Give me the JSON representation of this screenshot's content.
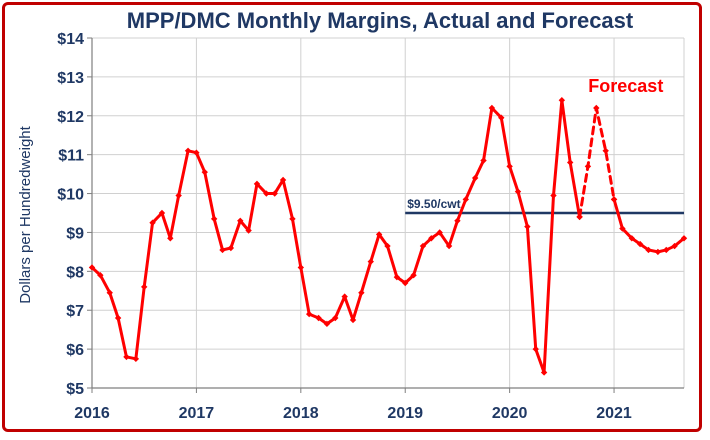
{
  "chart_data": {
    "type": "line",
    "title": "MPP/DMC Monthly Margins, Actual and Forecast",
    "ylabel": "Dollars per Hundredweight",
    "ylim": [
      5,
      14
    ],
    "yticks": [
      5,
      6,
      7,
      8,
      9,
      10,
      11,
      12,
      13,
      14
    ],
    "ytick_labels": [
      "$5",
      "$6",
      "$7",
      "$8",
      "$9",
      "$10",
      "$11",
      "$12",
      "$13",
      "$14"
    ],
    "xlim": [
      2016,
      2021.67
    ],
    "xticks": [
      2016,
      2017,
      2018,
      2019,
      2020,
      2021
    ],
    "xtick_labels": [
      "2016",
      "2017",
      "2018",
      "2019",
      "2020",
      "2021"
    ],
    "grid": true,
    "colors": {
      "series": "#ff0000",
      "reference": "#1f3864",
      "text": "#1f3864",
      "border": "#c00000"
    },
    "series": [
      {
        "style": "solid",
        "x": [
          2016.0,
          2016.08,
          2016.17,
          2016.25,
          2016.33,
          2016.42,
          2016.5,
          2016.58,
          2016.67,
          2016.75,
          2016.83,
          2016.92,
          2017.0,
          2017.08,
          2017.17,
          2017.25,
          2017.33,
          2017.42,
          2017.5,
          2017.58,
          2017.67,
          2017.75,
          2017.83,
          2017.92,
          2018.0,
          2018.08,
          2018.17,
          2018.25,
          2018.33,
          2018.42,
          2018.5,
          2018.58,
          2018.67,
          2018.75,
          2018.83,
          2018.92,
          2019.0,
          2019.08,
          2019.17,
          2019.25,
          2019.33,
          2019.42,
          2019.5,
          2019.58,
          2019.67,
          2019.75,
          2019.83,
          2019.92,
          2020.0,
          2020.08,
          2020.17,
          2020.25,
          2020.33,
          2020.42,
          2020.5,
          2020.58,
          2020.67
        ],
        "values": [
          8.1,
          7.9,
          7.45,
          6.8,
          5.8,
          5.75,
          7.6,
          9.25,
          9.5,
          8.85,
          9.95,
          11.1,
          11.05,
          10.55,
          9.35,
          8.55,
          8.6,
          9.3,
          9.05,
          10.25,
          10.0,
          10.0,
          10.35,
          9.35,
          8.1,
          6.9,
          6.8,
          6.65,
          6.8,
          7.35,
          6.75,
          7.45,
          8.25,
          8.95,
          8.65,
          7.85,
          7.7,
          7.9,
          8.65,
          8.85,
          9.0,
          8.65,
          9.3,
          9.85,
          10.4,
          10.85,
          12.2,
          11.95,
          10.7,
          10.05,
          9.15,
          6.0,
          5.4,
          9.95,
          12.4,
          10.8,
          9.4
        ]
      },
      {
        "name": "Forecast",
        "style": "dashed",
        "x": [
          2020.67,
          2020.75,
          2020.83,
          2020.92,
          2021.0
        ],
        "values": [
          9.4,
          10.7,
          12.2,
          11.1,
          9.85
        ]
      },
      {
        "style": "solid",
        "x": [
          2021.0,
          2021.08,
          2021.17,
          2021.25,
          2021.33,
          2021.42,
          2021.5,
          2021.58,
          2021.67
        ],
        "values": [
          9.85,
          9.1,
          8.85,
          8.7,
          8.55,
          8.5,
          8.55,
          8.65,
          8.85
        ]
      }
    ],
    "reference_line": {
      "label": "$9.50/cwt",
      "value": 9.5,
      "x_start": 2019.0,
      "x_end": 2021.67
    },
    "annotations": [
      {
        "text": "Forecast"
      }
    ]
  }
}
